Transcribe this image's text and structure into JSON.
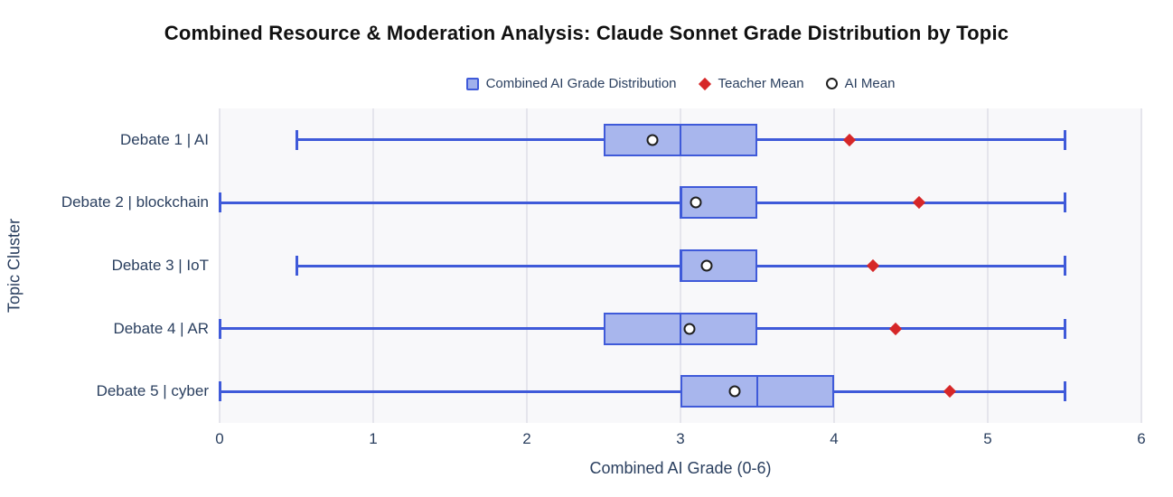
{
  "colors": {
    "box_fill": "#a8b6ed",
    "box_line": "#3f5ad9",
    "teacher_mean": "#d62728",
    "ai_mean_fill": "#ffffff",
    "ai_mean_stroke": "#1f1f1f",
    "axis_text": "#2a3f5f",
    "title_text": "#111111",
    "plot_bg": "#f8f8fa",
    "grid": "#e5e5ec"
  },
  "chart_data": {
    "type": "box",
    "orientation": "horizontal",
    "title": "Combined Resource & Moderation Analysis: Claude Sonnet Grade Distribution by Topic",
    "xlabel": "Combined AI Grade (0-6)",
    "ylabel": "Topic Cluster",
    "xlim": [
      0,
      6
    ],
    "xticks": [
      "0",
      "1",
      "2",
      "3",
      "4",
      "5",
      "6"
    ],
    "grid": "vertical-only",
    "legend_position": "top-center",
    "categories": [
      "Debate 1 | AI",
      "Debate 2 | blockchain",
      "Debate 3 | IoT",
      "Debate 4 | AR",
      "Debate 5 | cyber"
    ],
    "series": [
      {
        "name": "Combined AI Grade Distribution",
        "type": "box",
        "boxes": [
          {
            "category": "Debate 1 | AI",
            "whisker_low": 0.5,
            "q1": 2.5,
            "median": 3.0,
            "q3": 3.5,
            "whisker_high": 5.5
          },
          {
            "category": "Debate 2 | blockchain",
            "whisker_low": 0.0,
            "q1": 3.0,
            "median": 3.0,
            "q3": 3.5,
            "whisker_high": 5.5
          },
          {
            "category": "Debate 3 | IoT",
            "whisker_low": 0.5,
            "q1": 3.0,
            "median": 3.0,
            "q3": 3.5,
            "whisker_high": 5.5
          },
          {
            "category": "Debate 4 | AR",
            "whisker_low": 0.0,
            "q1": 2.5,
            "median": 3.0,
            "q3": 3.5,
            "whisker_high": 5.5
          },
          {
            "category": "Debate 5 | cyber",
            "whisker_low": 0.0,
            "q1": 3.0,
            "median": 3.5,
            "q3": 4.0,
            "whisker_high": 5.5
          }
        ]
      },
      {
        "name": "Teacher Mean",
        "type": "scatter",
        "marker": "diamond",
        "values": [
          4.1,
          4.55,
          4.25,
          4.4,
          4.75
        ]
      },
      {
        "name": "AI Mean",
        "type": "scatter",
        "marker": "open-circle",
        "values": [
          2.82,
          3.1,
          3.17,
          3.06,
          3.35
        ]
      }
    ]
  }
}
